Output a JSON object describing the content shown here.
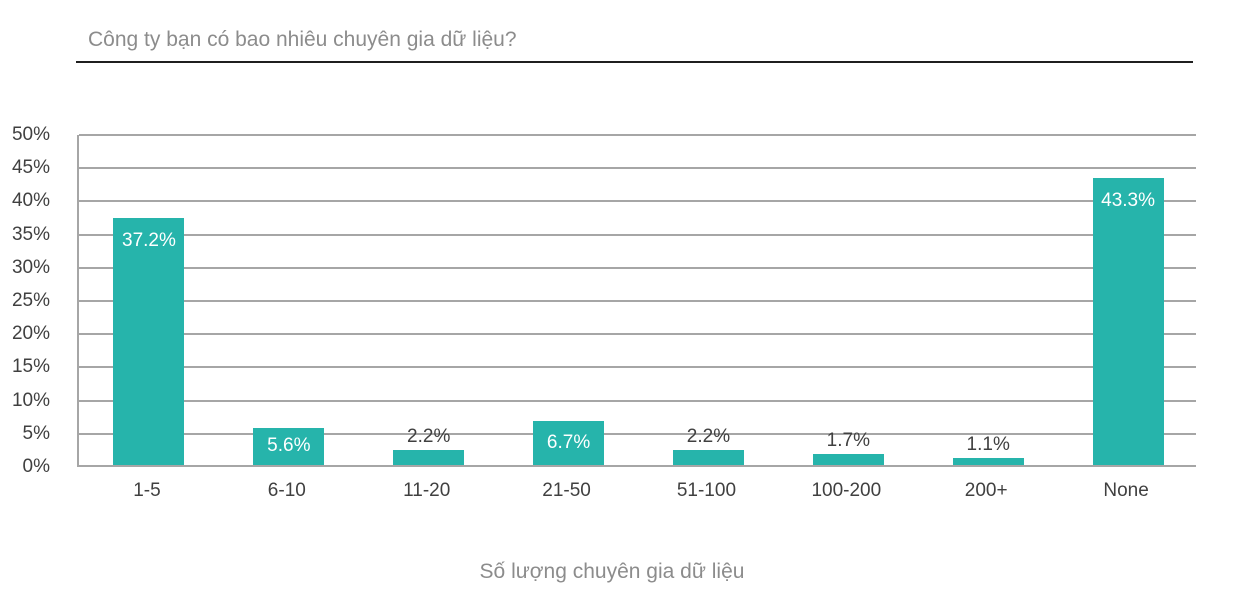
{
  "title": "Công ty bạn có bao nhiêu chuyên gia dữ liệu?",
  "colors": {
    "bar": "#26b4ab",
    "grid": "#a6a6a6",
    "axis": "#a6a6a6",
    "title_text": "#8c8c8c",
    "tick_text": "#404040",
    "label_inside": "#ffffff",
    "label_outside": "#404040",
    "underline": "#1f1f1f"
  },
  "chart_data": {
    "type": "bar",
    "title": "Công ty bạn có bao nhiêu chuyên gia dữ liệu?",
    "categories": [
      "1-5",
      "6-10",
      "11-20",
      "21-50",
      "51-100",
      "100-200",
      "200+",
      "None"
    ],
    "values": [
      37.2,
      5.6,
      2.2,
      6.7,
      2.2,
      1.7,
      1.1,
      43.3
    ],
    "value_labels": [
      "37.2%",
      "5.6%",
      "2.2%",
      "6.7%",
      "2.2%",
      "1.7%",
      "1.1%",
      "43.3%"
    ],
    "xlabel": "Số lượng chuyên gia dữ liệu",
    "ylabel": "",
    "ylim": [
      0,
      50
    ],
    "ytick_step": 5,
    "ytick_labels": [
      "0%",
      "5%",
      "10%",
      "15%",
      "20%",
      "25%",
      "30%",
      "35%",
      "40%",
      "45%",
      "50%"
    ],
    "grid": true,
    "legend": false
  }
}
